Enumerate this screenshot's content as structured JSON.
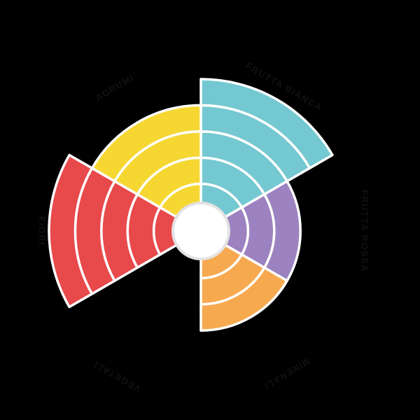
{
  "chart_data": {
    "type": "polar-ring-wheel",
    "title": "",
    "max_value": 5,
    "categories": [
      "FRUTTA BIANCA",
      "FRUTTA ROSSA",
      "MINERALI",
      "VEGETALI",
      "FIORI",
      "AGRUMI"
    ],
    "series": [
      {
        "name": "intensity_rings",
        "values": [
          5,
          3,
          3,
          0,
          5,
          4
        ]
      }
    ],
    "sectors": [
      {
        "label": "FRUTTA BIANCA",
        "value": 5,
        "color": "#74C8D1",
        "start_angle": 0,
        "end_angle": 60,
        "label_angle": 30,
        "label_rotation": 30,
        "label_radius": 237
      },
      {
        "label": "FRUTTA ROSSA",
        "value": 3,
        "color": "#9C82C0",
        "start_angle": 60,
        "end_angle": 120,
        "label_angle": 90,
        "label_rotation": 90,
        "label_radius": 233
      },
      {
        "label": "MINERALI",
        "value": 3,
        "color": "#F7A94F",
        "start_angle": 120,
        "end_angle": 180,
        "label_angle": 149,
        "label_rotation": 149,
        "label_radius": 237
      },
      {
        "label": "VEGETALI",
        "value": 0,
        "color": null,
        "start_angle": 180,
        "end_angle": 240,
        "label_angle": 210,
        "label_rotation": 210,
        "label_radius": 239
      },
      {
        "label": "FIORI",
        "value": 5,
        "color": "#E8494B",
        "start_angle": 240,
        "end_angle": 300,
        "label_angle": 270,
        "label_rotation": 90,
        "label_radius": 228
      },
      {
        "label": "AGRUMI",
        "value": 4,
        "color": "#F6D732",
        "start_angle": 300,
        "end_angle": 360,
        "label_angle": 329,
        "label_rotation": -31,
        "label_radius": 238
      }
    ],
    "layout": {
      "center": {
        "x": 287,
        "y": 330
      },
      "ring_inner_radius": 30,
      "ring_width": 37.4,
      "segment_stroke_width": 3.5,
      "center_circle_radius": 40,
      "center_circle_border_width": 4
    },
    "colors": {
      "background": "#000000",
      "segment_stroke": "#FFFFFF",
      "center_circle_fill": "#FFFFFF",
      "center_circle_border": "#E3E3E3",
      "label_text": "#111111"
    },
    "legend": "none",
    "grid": "ring dividers drawn as white arcs between rings"
  }
}
